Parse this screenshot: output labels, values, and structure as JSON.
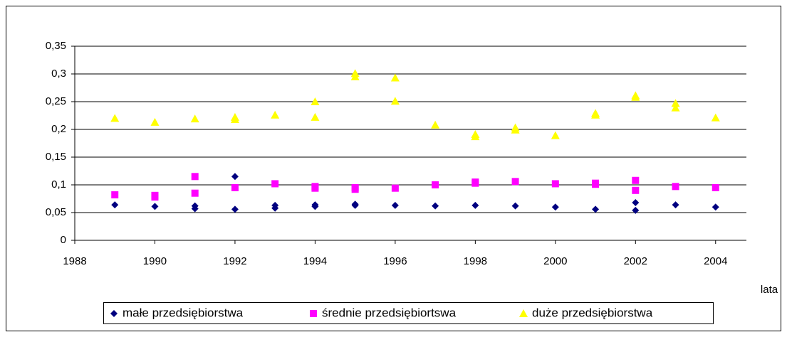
{
  "chart_data": {
    "type": "scatter",
    "x_label": "lata",
    "xlim": [
      1988,
      2005
    ],
    "xticks": [
      1988,
      1990,
      1992,
      1994,
      1996,
      1998,
      2000,
      2002,
      2004
    ],
    "ylim": [
      0,
      0.35
    ],
    "yticks": [
      0,
      {
        "value": 0.05,
        "label": "0,05"
      },
      {
        "value": 0.1,
        "label": "0,1"
      },
      {
        "value": 0.15,
        "label": "0,15"
      },
      {
        "value": 0.2,
        "label": "0,2"
      },
      {
        "value": 0.25,
        "label": "0,25"
      },
      {
        "value": 0.3,
        "label": "0,3"
      },
      {
        "value": 0.35,
        "label": "0,35"
      }
    ],
    "grid": true,
    "legend": "bottom",
    "series": [
      {
        "name": "małe przedsiębiorstwa",
        "color": "#000080",
        "marker": "diamond",
        "x": [
          1989,
          1990,
          1991,
          1991,
          1992,
          1992,
          1993,
          1993,
          1994,
          1994,
          1995,
          1995,
          1996,
          1997,
          1998,
          1999,
          2000,
          2001,
          2002,
          2002,
          2003,
          2004
        ],
        "values": [
          0.064,
          0.061,
          0.062,
          0.057,
          0.115,
          0.056,
          0.063,
          0.058,
          0.064,
          0.061,
          0.065,
          0.063,
          0.063,
          0.062,
          0.063,
          0.062,
          0.06,
          0.056,
          0.068,
          0.054,
          0.064,
          0.06
        ]
      },
      {
        "name": "średnie przedsiębiortswa",
        "color": "#ff00ff",
        "marker": "square",
        "x": [
          1989,
          1990,
          1990,
          1991,
          1991,
          1992,
          1993,
          1994,
          1994,
          1995,
          1995,
          1996,
          1997,
          1998,
          1998,
          1999,
          2000,
          2001,
          2001,
          2002,
          2002,
          2003,
          2004
        ],
        "values": [
          0.082,
          0.081,
          0.078,
          0.115,
          0.085,
          0.095,
          0.102,
          0.097,
          0.094,
          0.095,
          0.092,
          0.094,
          0.1,
          0.105,
          0.103,
          0.106,
          0.102,
          0.103,
          0.101,
          0.108,
          0.09,
          0.097,
          0.095
        ]
      },
      {
        "name": "duże przedsiębiorstwa",
        "color": "#ffff00",
        "marker": "triangle",
        "x": [
          1989,
          1990,
          1991,
          1992,
          1992,
          1993,
          1994,
          1994,
          1995,
          1995,
          1996,
          1996,
          1997,
          1998,
          1998,
          1999,
          1999,
          2000,
          2001,
          2001,
          2002,
          2002,
          2003,
          2003,
          2004
        ],
        "values": [
          0.22,
          0.213,
          0.219,
          0.222,
          0.218,
          0.226,
          0.25,
          0.222,
          0.301,
          0.295,
          0.293,
          0.251,
          0.208,
          0.191,
          0.187,
          0.203,
          0.199,
          0.189,
          0.229,
          0.226,
          0.261,
          0.258,
          0.247,
          0.239,
          0.221
        ]
      }
    ]
  }
}
